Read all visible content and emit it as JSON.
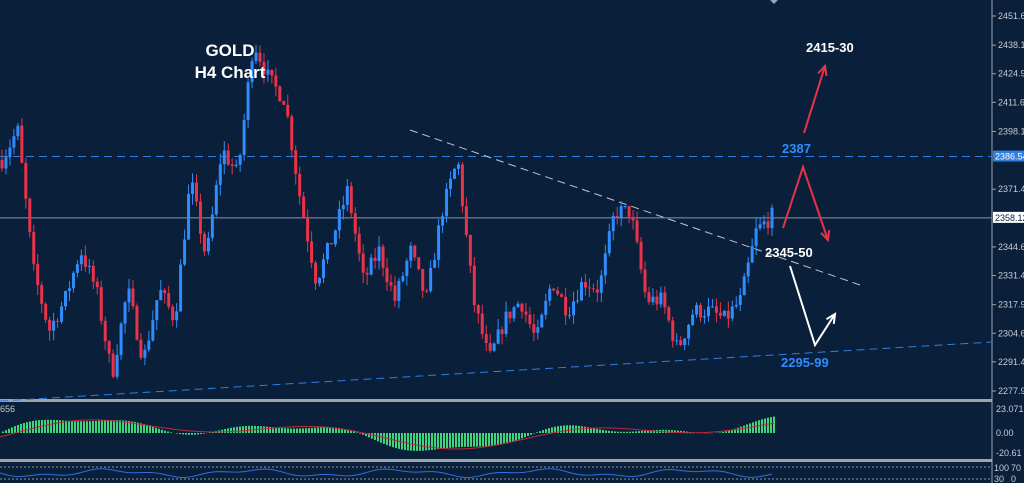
{
  "chart_data": {
    "type": "candlestick",
    "title": "GOLD",
    "subtitle": "H4 Chart",
    "symbol": "GOLD",
    "timeframe": "H4",
    "ylim": [
      2277.9,
      2451.65
    ],
    "y_ticks": [
      "2451.65",
      "2438.15",
      "2424.90",
      "2411.65",
      "2398.15",
      "2371.40",
      "2344.65",
      "2331.40",
      "2317.90",
      "2304.65",
      "2291.40",
      "2277.90"
    ],
    "price_labels": {
      "resistance": "2386.54",
      "current": "2358.12"
    },
    "approx_closes": [
      2385,
      2399,
      2334,
      2306,
      2320,
      2343,
      2325,
      2285,
      2325,
      2292,
      2325,
      2311,
      2376,
      2339,
      2390,
      2378,
      2440,
      2422,
      2413,
      2366,
      2329,
      2348,
      2371,
      2329,
      2343,
      2320,
      2343,
      2320,
      2361,
      2385,
      2320,
      2292,
      2311,
      2320,
      2301,
      2329,
      2315,
      2329,
      2325,
      2361,
      2361,
      2320,
      2320,
      2297,
      2315,
      2315,
      2311,
      2320,
      2352,
      2359
    ],
    "annotations": [
      {
        "text": "2415-30",
        "color": "#ffffff"
      },
      {
        "text": "2387",
        "color": "#2f8cff"
      },
      {
        "text": "2345-50",
        "color": "#ffffff"
      },
      {
        "text": "2295-99",
        "color": "#2f8cff"
      }
    ],
    "lines": [
      {
        "kind": "horizontal",
        "price": 2386.54,
        "style": "dashed",
        "color": "#2f7fe0"
      },
      {
        "kind": "horizontal",
        "price": 2358.12,
        "style": "solid",
        "color": "#8a96a8"
      },
      {
        "kind": "descending-trendline",
        "style": "dashed",
        "color": "#c0c6d0"
      },
      {
        "kind": "ascending-trendline",
        "style": "dashed",
        "color": "#2f7fe0"
      }
    ],
    "colors": {
      "background": "#0a1f3a",
      "bull": "#2f8cff",
      "bear": "#e8334a",
      "histogram": "#3fd67a",
      "signal": "#c0293a"
    },
    "indicator": {
      "label": "656",
      "y_ticks": [
        "23.071",
        "0.00",
        "-20.61"
      ]
    },
    "oscillator": {
      "y_ticks": [
        "100",
        "70",
        "30",
        "0"
      ]
    }
  }
}
